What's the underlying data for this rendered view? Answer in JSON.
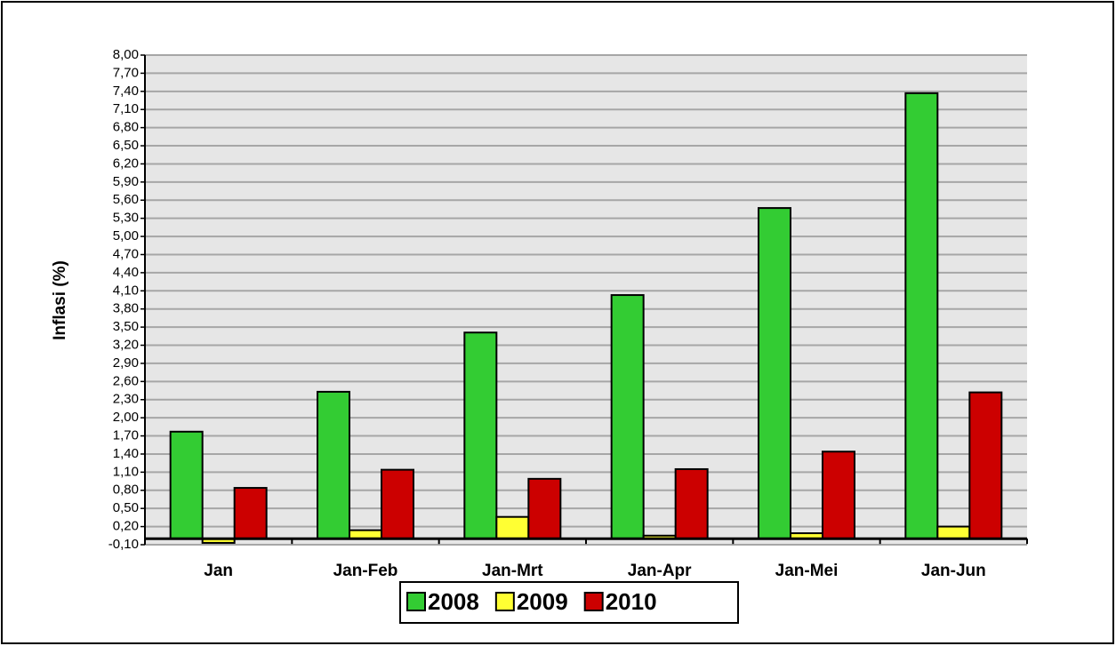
{
  "chart_data": {
    "type": "bar",
    "y_label": "Inflasi (%)",
    "categories": [
      "Jan",
      "Jan-Feb",
      "Jan-Mrt",
      "Jan-Apr",
      "Jan-Mei",
      "Jan-Jun"
    ],
    "series": [
      {
        "name": "2008",
        "color": "#33cc33",
        "values": [
          1.77,
          2.43,
          3.41,
          4.03,
          5.47,
          7.37
        ]
      },
      {
        "name": "2009",
        "color": "#ffff33",
        "values": [
          -0.07,
          0.14,
          0.36,
          0.05,
          0.09,
          0.2
        ]
      },
      {
        "name": "2010",
        "color": "#cc0000",
        "values": [
          0.84,
          1.14,
          0.99,
          1.15,
          1.44,
          2.42
        ]
      }
    ],
    "ylim": [
      -0.1,
      8.0
    ],
    "yticks": [
      {
        "value": -0.1,
        "label": "-0,10"
      },
      {
        "value": 0.2,
        "label": "0,20"
      },
      {
        "value": 0.5,
        "label": "0,50"
      },
      {
        "value": 0.8,
        "label": "0,80"
      },
      {
        "value": 1.1,
        "label": "1,10"
      },
      {
        "value": 1.4,
        "label": "1,40"
      },
      {
        "value": 1.7,
        "label": "1,70"
      },
      {
        "value": 2.0,
        "label": "2,00"
      },
      {
        "value": 2.3,
        "label": "2,30"
      },
      {
        "value": 2.6,
        "label": "2,60"
      },
      {
        "value": 2.9,
        "label": "2,90"
      },
      {
        "value": 3.2,
        "label": "3,20"
      },
      {
        "value": 3.5,
        "label": "3,50"
      },
      {
        "value": 3.8,
        "label": "3,80"
      },
      {
        "value": 4.1,
        "label": "4,10"
      },
      {
        "value": 4.4,
        "label": "4,40"
      },
      {
        "value": 4.7,
        "label": "4,70"
      },
      {
        "value": 5.0,
        "label": "5,00"
      },
      {
        "value": 5.3,
        "label": "5,30"
      },
      {
        "value": 5.6,
        "label": "5,60"
      },
      {
        "value": 5.9,
        "label": "5,90"
      },
      {
        "value": 6.2,
        "label": "6,20"
      },
      {
        "value": 6.5,
        "label": "6,50"
      },
      {
        "value": 6.8,
        "label": "6,80"
      },
      {
        "value": 7.1,
        "label": "7,10"
      },
      {
        "value": 7.4,
        "label": "7,40"
      },
      {
        "value": 7.7,
        "label": "7,70"
      },
      {
        "value": 8.0,
        "label": "8,00"
      }
    ],
    "grid": true
  }
}
